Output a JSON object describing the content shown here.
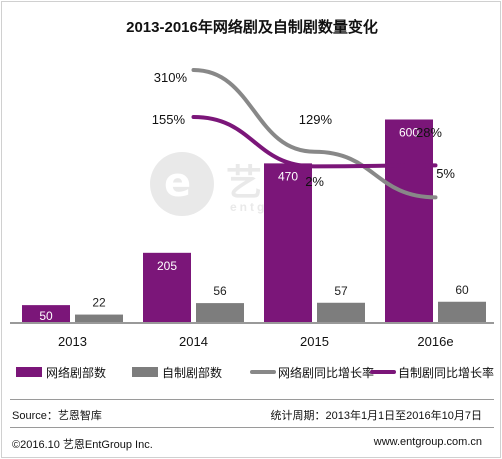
{
  "chart_data": {
    "type": "bar",
    "title": "2013-2016年网络剧及自制剧数量变化",
    "categories": [
      "2013",
      "2014",
      "2015",
      "2016e"
    ],
    "series": [
      {
        "name": "网络剧部数",
        "kind": "bar",
        "values": [
          50,
          205,
          470,
          600
        ],
        "color": "#7b1679"
      },
      {
        "name": "自制剧部数",
        "kind": "bar",
        "values": [
          22,
          56,
          57,
          60
        ],
        "color": "#7d7d7d"
      },
      {
        "name": "网络剧同比增长率",
        "kind": "line",
        "values": [
          null,
          310,
          129,
          28
        ],
        "labels": [
          "",
          "310%",
          "129%",
          "28%"
        ],
        "color": "#888888"
      },
      {
        "name": "自制剧同比增长率",
        "kind": "line",
        "values": [
          null,
          155,
          2,
          5
        ],
        "labels": [
          "",
          "155%",
          "2%",
          "5%"
        ],
        "color": "#7b1679"
      }
    ],
    "bar_ylim": [
      0,
      640
    ],
    "grid": false,
    "legend_position": "bottom"
  },
  "watermark": {
    "logo_letter": "e",
    "cn": "艺恩",
    "en": "entgroup"
  },
  "footer": {
    "source": "Source：艺恩智库",
    "period": "统计周期：2013年1月1日至2016年10月7日",
    "copyright": "©2016.10 艺恩EntGroup Inc.",
    "website": "www.entgroup.com.cn"
  }
}
